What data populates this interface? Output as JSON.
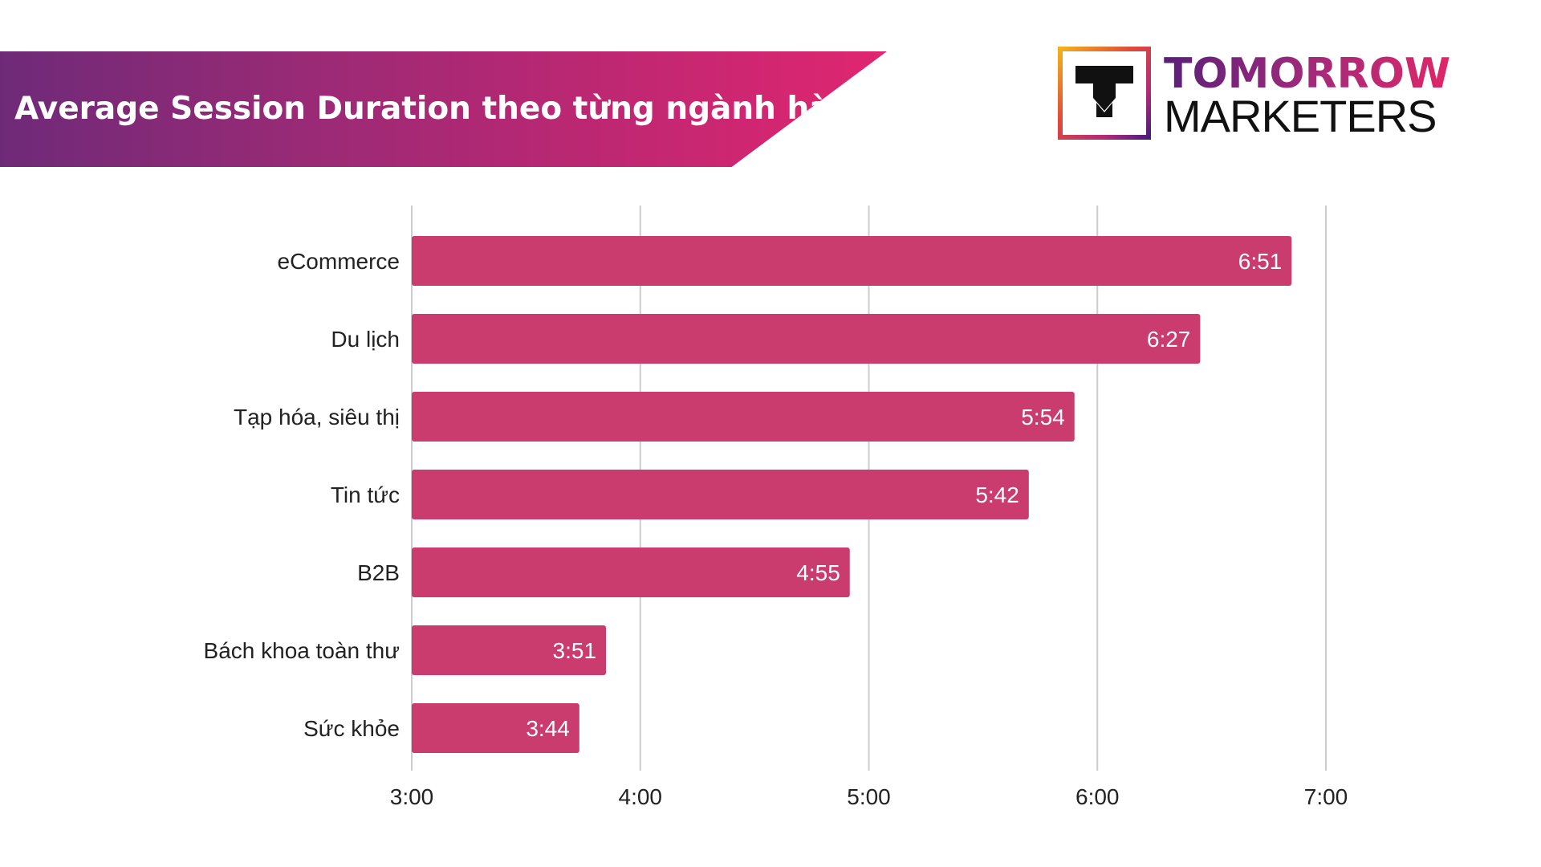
{
  "header": {
    "title": "Average Session Duration theo từng ngành hàng"
  },
  "logo": {
    "line1": "TOMORROW",
    "line2": "MARKETERS"
  },
  "colors": {
    "bar": "#c93c6d",
    "grid": "#cccccc",
    "banner_start": "#6e2a78",
    "banner_end": "#e02670"
  },
  "chart_data": {
    "type": "bar",
    "orientation": "horizontal",
    "categories": [
      "eCommerce",
      "Du lịch",
      "Tạp hóa, siêu thị",
      "Tin tức",
      "B2B",
      "Bách khoa toàn thư",
      "Sức khỏe"
    ],
    "values": [
      "6:51",
      "6:27",
      "5:54",
      "5:42",
      "4:55",
      "3:51",
      "3:44"
    ],
    "data_labels": [
      "6:51",
      "6:27",
      "5:54",
      "5:42",
      "4:55",
      "3:51",
      "3:44"
    ],
    "x_ticks": [
      "3:00",
      "4:00",
      "5:00",
      "6:00",
      "7:00"
    ],
    "xlim": [
      "3:00",
      "7:00"
    ],
    "grid": true,
    "legend": "none"
  }
}
